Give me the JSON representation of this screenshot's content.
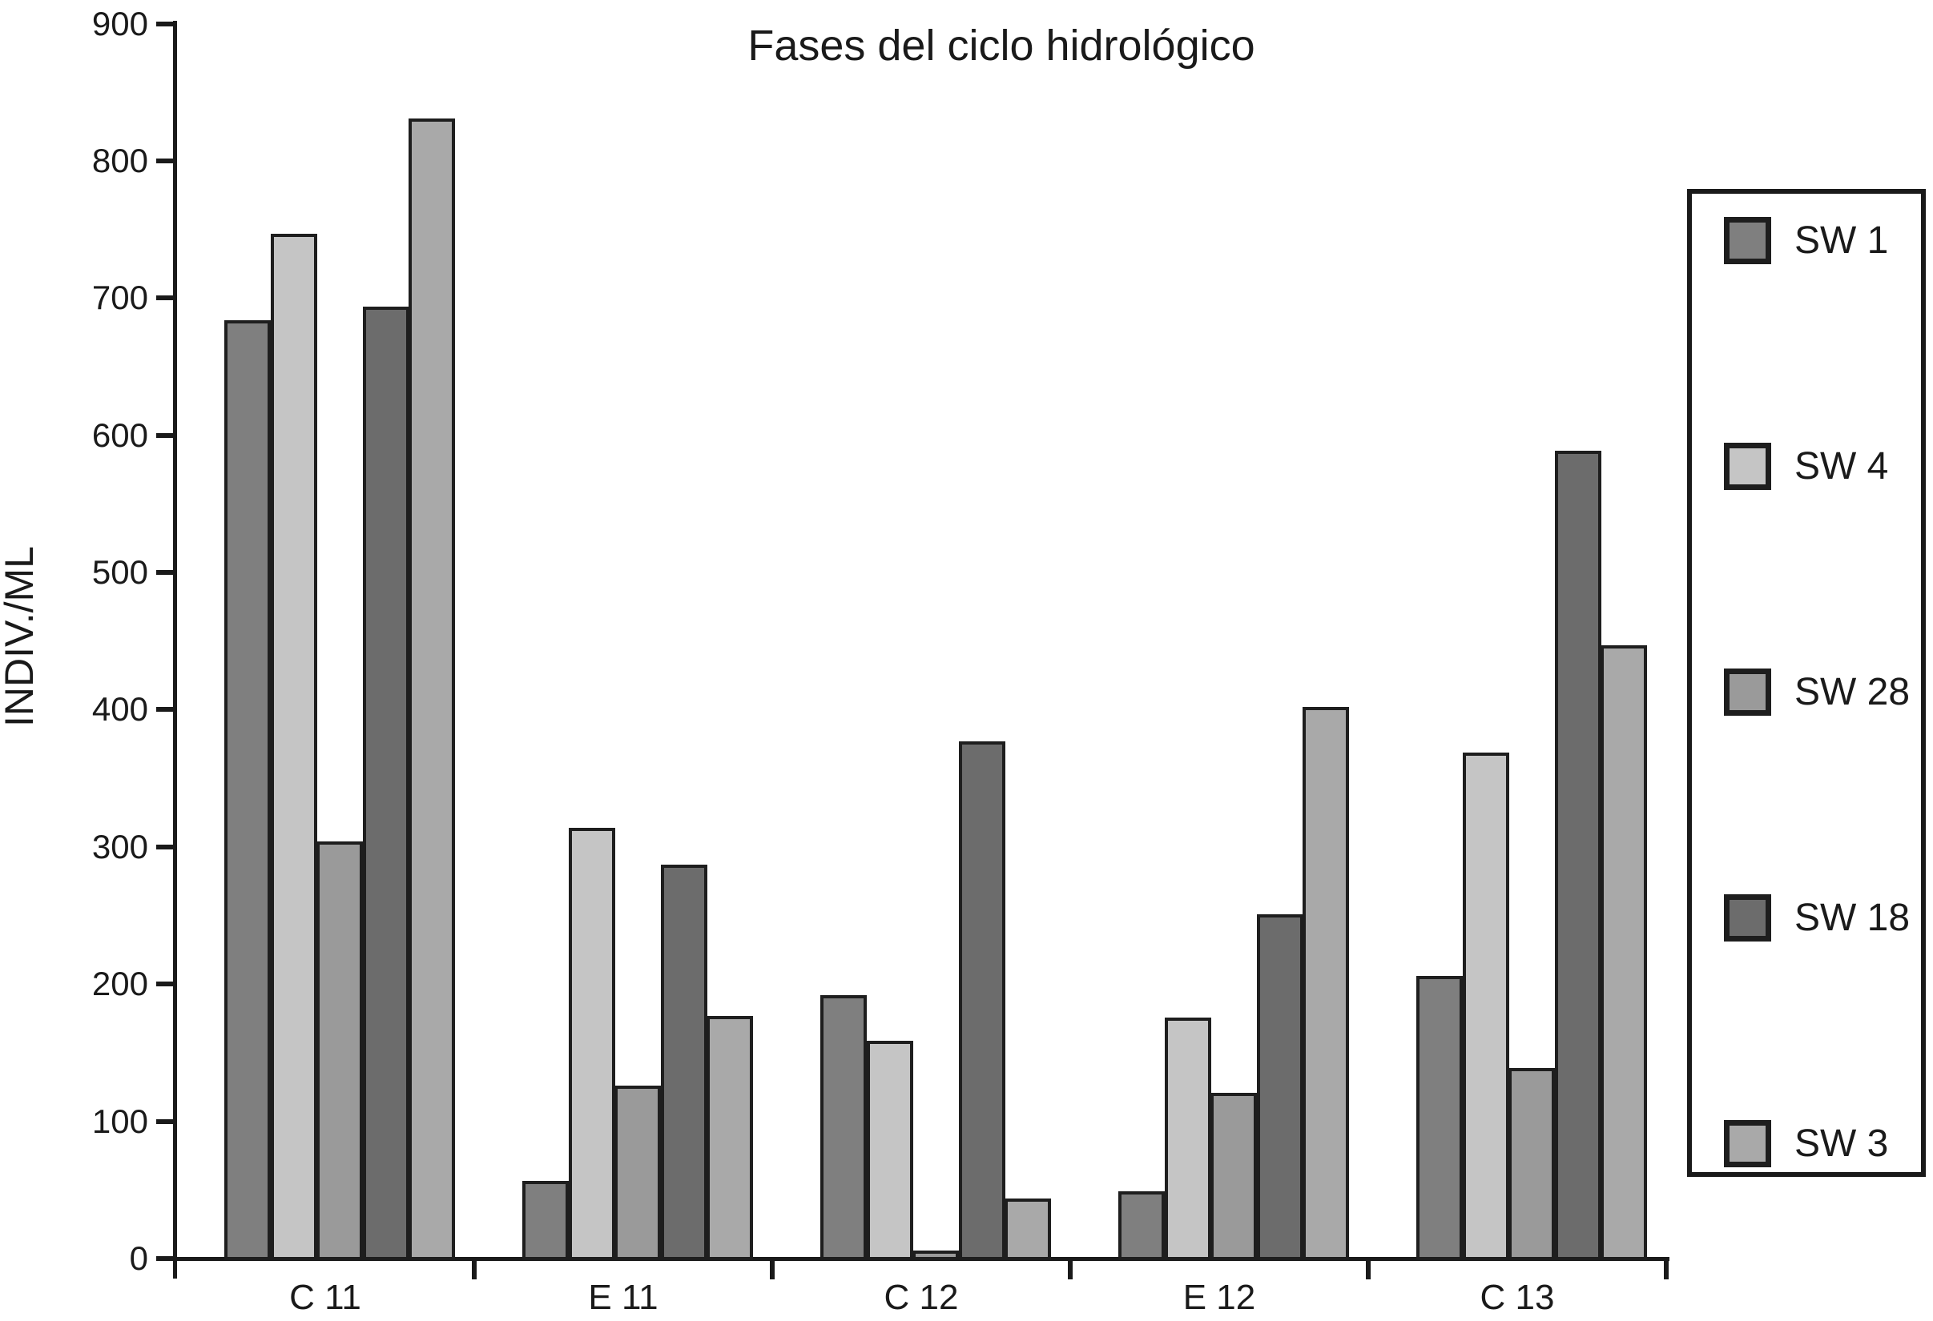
{
  "chart_data": {
    "type": "bar",
    "title": "Fases del ciclo hidrológico",
    "ylabel": "INDIV./ML",
    "xlabel": "",
    "ylim": [
      0,
      900
    ],
    "ytick_step": 100,
    "ytick_labels": [
      0,
      100,
      200,
      300,
      400,
      500,
      600,
      700,
      800,
      900
    ],
    "grid": false,
    "legend_position": "right",
    "categories": [
      "C 11",
      "E 11",
      "C 12",
      "E 12",
      "C 13"
    ],
    "series": [
      {
        "name": "SW 1",
        "color": "#7f7f7f",
        "values": [
          685,
          58,
          193,
          50,
          207
        ]
      },
      {
        "name": "SW 4",
        "color": "#c5c5c5",
        "values": [
          748,
          315,
          160,
          177,
          370
        ]
      },
      {
        "name": "SW 28",
        "color": "#9a9a9a",
        "values": [
          305,
          127,
          7,
          122,
          140
        ]
      },
      {
        "name": "SW 18",
        "color": "#6c6c6c",
        "values": [
          695,
          288,
          378,
          252,
          590
        ]
      },
      {
        "name": "SW 3",
        "color": "#a9a9a9",
        "values": [
          832,
          178,
          45,
          403,
          448
        ]
      }
    ],
    "outline_color": "#1e1e1e",
    "text_color": "#1a1a1a",
    "background_color": "#ffffff"
  }
}
